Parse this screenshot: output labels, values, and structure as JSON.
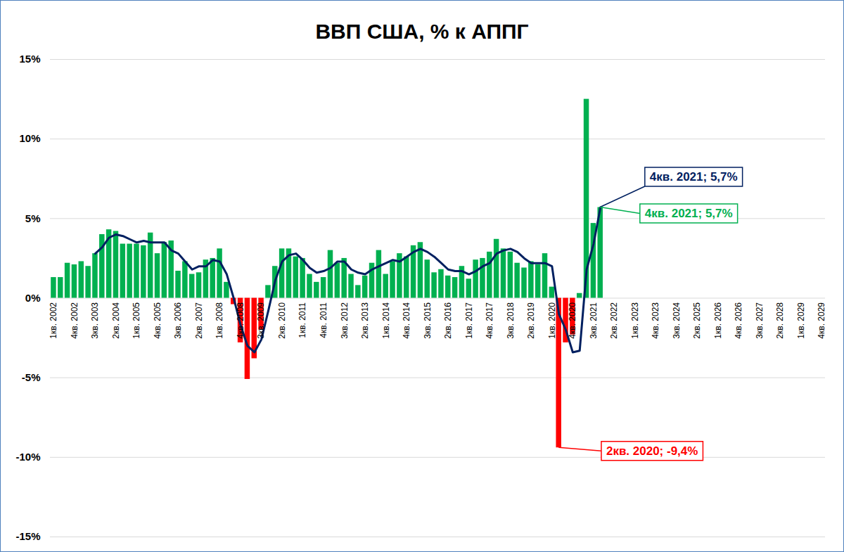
{
  "chart_data": {
    "type": "bar",
    "title": "ВВП США, % к АППГ",
    "categories": [
      "1кв. 2002",
      null,
      null,
      "4кв. 2002",
      null,
      null,
      "3кв. 2003",
      null,
      null,
      "2кв. 2004",
      null,
      null,
      "1кв. 2005",
      null,
      null,
      "4кв. 2005",
      null,
      null,
      "3кв. 2006",
      null,
      null,
      "2кв. 2007",
      null,
      null,
      "1кв. 2008",
      null,
      null,
      "4кв. 2008",
      null,
      null,
      "3кв. 2009",
      null,
      null,
      "2кв. 2010",
      null,
      null,
      "1кв. 2011",
      null,
      null,
      "4кв. 2011",
      null,
      null,
      "3кв. 2012",
      null,
      null,
      "2кв. 2013",
      null,
      null,
      "1кв. 2014",
      null,
      null,
      "4кв. 2014",
      null,
      null,
      "3кв. 2015",
      null,
      null,
      "2кв. 2016",
      null,
      null,
      "1кв. 2017",
      null,
      null,
      "4кв. 2017",
      null,
      null,
      "3кв. 2018",
      null,
      null,
      "2кв. 2019",
      null,
      null,
      "1кв. 2020",
      null,
      null,
      "4кв. 2020",
      null,
      null,
      "3кв. 2021",
      null,
      null,
      "2кв. 2022",
      null,
      null,
      "1кв. 2023",
      null,
      null,
      "4кв. 2023",
      null,
      null,
      "3кв. 2024",
      null,
      null,
      "2кв. 2025",
      null,
      null,
      "1кв. 2026",
      null,
      null,
      "4кв. 2026",
      null,
      null,
      "3кв. 2027",
      null,
      null,
      "2кв. 2028",
      null,
      null,
      "1кв. 2029",
      null,
      null,
      "4кв. 2029"
    ],
    "series": [
      {
        "type": "bar",
        "values": [
          1.3,
          1.3,
          2.2,
          2.1,
          2.3,
          2.0,
          2.8,
          4.0,
          4.3,
          4.2,
          3.4,
          3.4,
          3.4,
          3.3,
          4.1,
          2.8,
          3.5,
          3.6,
          1.7,
          2.3,
          1.5,
          1.6,
          2.4,
          2.5,
          3.1,
          1.0,
          -0.4,
          -2.8,
          -5.1,
          -3.8,
          -2.0,
          0.8,
          2.0,
          3.1,
          3.1,
          2.6,
          2.5,
          1.5,
          1.0,
          1.3,
          3.0,
          2.2,
          2.5,
          1.5,
          0.8,
          1.4,
          2.2,
          3.0,
          1.5,
          2.3,
          2.8,
          2.6,
          3.3,
          3.5,
          2.4,
          1.6,
          1.8,
          1.4,
          1.3,
          2.0,
          1.2,
          2.4,
          2.5,
          2.9,
          3.7,
          3.1,
          2.9,
          2.2,
          1.9,
          2.3,
          2.1,
          2.8,
          0.7,
          -9.4,
          -2.8,
          -2.3,
          0.3,
          12.5,
          4.7,
          5.7,
          null,
          null,
          null,
          null,
          null,
          null,
          null,
          null,
          null,
          null,
          null,
          null,
          null,
          null,
          null,
          null,
          null,
          null,
          null,
          null,
          null,
          null,
          null,
          null,
          null,
          null,
          null,
          null,
          null,
          null,
          null,
          null
        ],
        "colors": [
          "#00b050",
          "#00b050",
          "#00b050",
          "#00b050",
          "#00b050",
          "#00b050",
          "#00b050",
          "#00b050",
          "#00b050",
          "#00b050",
          "#00b050",
          "#00b050",
          "#00b050",
          "#00b050",
          "#00b050",
          "#00b050",
          "#00b050",
          "#00b050",
          "#00b050",
          "#00b050",
          "#00b050",
          "#00b050",
          "#00b050",
          "#00b050",
          "#00b050",
          "#00b050",
          "#ff0000",
          "#ff0000",
          "#ff0000",
          "#ff0000",
          "#ff0000",
          "#00b050",
          "#00b050",
          "#00b050",
          "#00b050",
          "#00b050",
          "#00b050",
          "#00b050",
          "#00b050",
          "#00b050",
          "#00b050",
          "#00b050",
          "#00b050",
          "#00b050",
          "#00b050",
          "#00b050",
          "#00b050",
          "#00b050",
          "#00b050",
          "#00b050",
          "#00b050",
          "#00b050",
          "#00b050",
          "#00b050",
          "#00b050",
          "#00b050",
          "#00b050",
          "#00b050",
          "#00b050",
          "#00b050",
          "#00b050",
          "#00b050",
          "#00b050",
          "#00b050",
          "#00b050",
          "#00b050",
          "#00b050",
          "#00b050",
          "#00b050",
          "#00b050",
          "#00b050",
          "#00b050",
          "#00b050",
          "#ff0000",
          "#ff0000",
          "#ff0000",
          "#00b050",
          "#00b050",
          "#00b050",
          "#00b050",
          "#00b050",
          "#00b050",
          "#00b050",
          "#00b050",
          "#00b050",
          "#00b050",
          "#00b050",
          "#00b050",
          "#00b050",
          "#00b050",
          "#00b050",
          "#00b050",
          "#00b050",
          "#00b050",
          "#00b050",
          "#00b050",
          "#00b050",
          "#00b050",
          "#00b050",
          "#00b050",
          "#00b050",
          "#00b050",
          "#00b050",
          "#00b050",
          "#00b050",
          "#00b050",
          "#00b050",
          "#00b050",
          "#00b050",
          "#00b050",
          "#00b050",
          "#00b050"
        ]
      },
      {
        "type": "line",
        "color": "#002060",
        "values": [
          null,
          null,
          null,
          null,
          null,
          null,
          2.8,
          3.2,
          3.8,
          4.0,
          3.9,
          3.7,
          3.5,
          3.6,
          3.5,
          3.5,
          3.5,
          3.0,
          2.8,
          2.3,
          1.8,
          2.0,
          2.0,
          2.4,
          2.3,
          1.5,
          0.0,
          -1.7,
          -3.0,
          -3.4,
          -2.6,
          -0.8,
          1.1,
          2.3,
          2.7,
          2.8,
          2.4,
          1.9,
          1.6,
          1.7,
          1.9,
          2.3,
          2.3,
          1.8,
          1.6,
          1.5,
          1.8,
          2.0,
          2.2,
          2.4,
          2.3,
          2.6,
          2.9,
          3.1,
          2.9,
          2.6,
          2.2,
          1.8,
          1.7,
          1.7,
          1.5,
          1.7,
          2.0,
          2.2,
          2.8,
          3.0,
          3.1,
          2.9,
          2.5,
          2.2,
          2.2,
          2.2,
          2.0,
          -1.0,
          -2.0,
          -3.4,
          -3.3,
          1.8,
          3.4,
          5.7,
          null,
          null,
          null,
          null,
          null,
          null,
          null,
          null,
          null,
          null,
          null,
          null,
          null,
          null,
          null,
          null,
          null,
          null,
          null,
          null,
          null,
          null,
          null,
          null,
          null,
          null,
          null,
          null,
          null,
          null,
          null,
          null
        ]
      }
    ],
    "ylim": [
      -15,
      15
    ],
    "yticks": [
      {
        "value": -15,
        "label": "-15%"
      },
      {
        "value": -10,
        "label": "-10%"
      },
      {
        "value": -5,
        "label": "-5%"
      },
      {
        "value": 0,
        "label": "0%"
      },
      {
        "value": 5,
        "label": "5%"
      },
      {
        "value": 10,
        "label": "10%"
      },
      {
        "value": 15,
        "label": "15%"
      }
    ],
    "grid": true,
    "annotations": [
      {
        "text": "4кв. 2021; 5,7%",
        "x": 79,
        "y": 5.7,
        "color": "#002060"
      },
      {
        "text": "4кв. 2021; 5,7%",
        "x": 79,
        "y": 5.7,
        "color": "#00b050"
      },
      {
        "text": "2кв. 2020; -9,4%",
        "x": 73,
        "y": -9.4,
        "color": "#ff0000"
      }
    ]
  }
}
